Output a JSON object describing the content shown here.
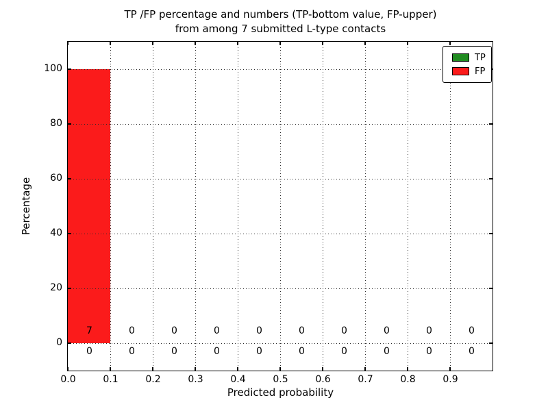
{
  "title": {
    "line1": "TP /FP percentage and numbers (TP-bottom value, FP-upper)",
    "line2": "from among 7 submitted L-type contacts"
  },
  "chart_data": {
    "type": "bar",
    "stacked": true,
    "title": "TP /FP percentage and numbers (TP-bottom value, FP-upper) from among 7 submitted L-type contacts",
    "xlabel": "Predicted probability",
    "ylabel": "Percentage",
    "xlim": [
      0.0,
      1.0
    ],
    "ylim": [
      -10,
      110
    ],
    "x_tick_values": [
      0.0,
      0.1,
      0.2,
      0.3,
      0.4,
      0.5,
      0.6,
      0.7,
      0.8,
      0.9
    ],
    "x_tick_labels": [
      "0.0",
      "0.1",
      "0.2",
      "0.3",
      "0.4",
      "0.5",
      "0.6",
      "0.7",
      "0.8",
      "0.9"
    ],
    "y_tick_values": [
      0,
      20,
      40,
      60,
      80,
      100
    ],
    "y_tick_labels": [
      "0",
      "20",
      "40",
      "60",
      "80",
      "100"
    ],
    "bin_edges": [
      0.0,
      0.1,
      0.2,
      0.3,
      0.4,
      0.5,
      0.6,
      0.7,
      0.8,
      0.9,
      1.0
    ],
    "grid": "dotted",
    "legend_position": "upper right",
    "total_contacts": 7,
    "series": [
      {
        "name": "TP",
        "color": "#208b20",
        "count_row": "bottom",
        "percentages": [
          0,
          0,
          0,
          0,
          0,
          0,
          0,
          0,
          0,
          0
        ],
        "counts": [
          "0",
          "0",
          "0",
          "0",
          "0",
          "0",
          "0",
          "0",
          "0",
          "0"
        ]
      },
      {
        "name": "FP",
        "color": "#fb1b1b",
        "count_row": "upper",
        "percentages": [
          100,
          0,
          0,
          0,
          0,
          0,
          0,
          0,
          0,
          0
        ],
        "counts": [
          "7",
          "0",
          "0",
          "0",
          "0",
          "0",
          "0",
          "0",
          "0",
          "0"
        ]
      }
    ]
  }
}
